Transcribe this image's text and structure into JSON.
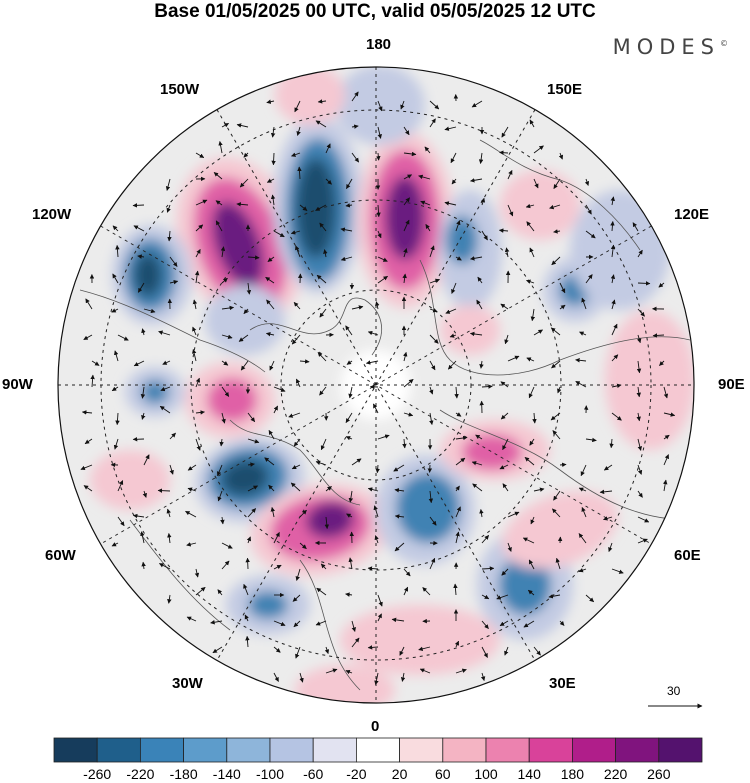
{
  "header": {
    "title": "Base 01/05/2025 00 UTC, valid 05/05/2025 12 UTC",
    "brand": "MODES"
  },
  "map": {
    "projection": "north-polar-stereographic",
    "longitude_labels": {
      "top": "180",
      "bottom": "0",
      "left": "90W",
      "right": "90E",
      "upper_left_1": "150W",
      "upper_left_2": "120W",
      "lower_left_1": "60W",
      "lower_left_2": "30W",
      "upper_right_1": "150E",
      "upper_right_2": "120E",
      "lower_right_1": "60E",
      "lower_right_2": "30E"
    },
    "colors": {
      "neg_strong": "#1f4e6e",
      "neg_mid": "#3f82b3",
      "neg_weak": "#c3cbe3",
      "pos_weak": "#f5c8d2",
      "pos_mid": "#e060a6",
      "pos_strong": "#6a1a80",
      "neutral": "#eeeeee"
    }
  },
  "reference_vector": {
    "label": "30"
  },
  "colorbar": {
    "ticks": [
      "-260",
      "-220",
      "-180",
      "-140",
      "-100",
      "-60",
      "-20",
      "20",
      "60",
      "100",
      "140",
      "180",
      "220",
      "260"
    ],
    "colors": [
      "#163c5c",
      "#1f5f8b",
      "#3a83b8",
      "#5d9ccb",
      "#8eb5da",
      "#b5c4e3",
      "#e2e3f1",
      "#ffffff",
      "#f9dcdf",
      "#f4b4c3",
      "#ec82af",
      "#d9429a",
      "#b01e8a",
      "#80147e",
      "#54126e"
    ]
  }
}
